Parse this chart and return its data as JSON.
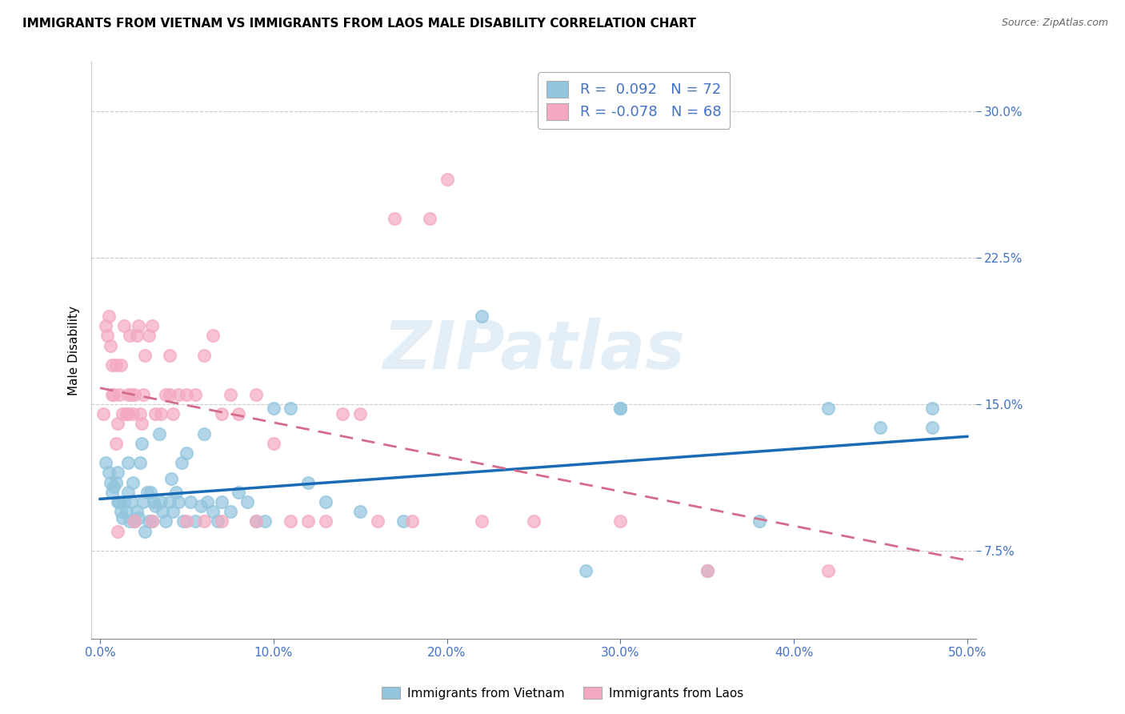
{
  "title": "IMMIGRANTS FROM VIETNAM VS IMMIGRANTS FROM LAOS MALE DISABILITY CORRELATION CHART",
  "source": "Source: ZipAtlas.com",
  "ylabel": "Male Disability",
  "xlim": [
    -0.005,
    0.505
  ],
  "ylim": [
    0.03,
    0.325
  ],
  "xticks": [
    0.0,
    0.1,
    0.2,
    0.3,
    0.4,
    0.5
  ],
  "xticklabels": [
    "0.0%",
    "10.0%",
    "20.0%",
    "30.0%",
    "40.0%",
    "50.0%"
  ],
  "yticks": [
    0.075,
    0.15,
    0.225,
    0.3
  ],
  "yticklabels": [
    "7.5%",
    "15.0%",
    "22.5%",
    "30.0%"
  ],
  "legend_vietnam": "Immigrants from Vietnam",
  "legend_laos": "Immigrants from Laos",
  "R_vietnam": "0.092",
  "N_vietnam": "72",
  "R_laos": "-0.078",
  "N_laos": "68",
  "color_vietnam": "#92c5de",
  "color_laos": "#f4a9c0",
  "color_trendline_vietnam": "#1a6bb5",
  "color_trendline_laos": "#d46b8a",
  "watermark": "ZIPatlas",
  "tick_color": "#4472c4",
  "vietnam_x": [
    0.003,
    0.005,
    0.006,
    0.007,
    0.008,
    0.009,
    0.01,
    0.01,
    0.011,
    0.012,
    0.013,
    0.014,
    0.015,
    0.016,
    0.016,
    0.017,
    0.018,
    0.019,
    0.02,
    0.021,
    0.022,
    0.023,
    0.024,
    0.025,
    0.026,
    0.027,
    0.028,
    0.029,
    0.03,
    0.031,
    0.032,
    0.034,
    0.035,
    0.036,
    0.038,
    0.04,
    0.041,
    0.042,
    0.044,
    0.045,
    0.047,
    0.048,
    0.05,
    0.052,
    0.055,
    0.058,
    0.06,
    0.062,
    0.065,
    0.068,
    0.07,
    0.075,
    0.08,
    0.085,
    0.09,
    0.095,
    0.1,
    0.11,
    0.12,
    0.13,
    0.15,
    0.175,
    0.22,
    0.28,
    0.35,
    0.38,
    0.42,
    0.45,
    0.3,
    0.3,
    0.48,
    0.48
  ],
  "vietnam_y": [
    0.12,
    0.115,
    0.11,
    0.105,
    0.108,
    0.11,
    0.1,
    0.115,
    0.1,
    0.095,
    0.092,
    0.1,
    0.095,
    0.105,
    0.12,
    0.09,
    0.1,
    0.11,
    0.09,
    0.095,
    0.092,
    0.12,
    0.13,
    0.1,
    0.085,
    0.105,
    0.09,
    0.105,
    0.09,
    0.1,
    0.098,
    0.135,
    0.1,
    0.095,
    0.09,
    0.1,
    0.112,
    0.095,
    0.105,
    0.1,
    0.12,
    0.09,
    0.125,
    0.1,
    0.09,
    0.098,
    0.135,
    0.1,
    0.095,
    0.09,
    0.1,
    0.095,
    0.105,
    0.1,
    0.09,
    0.09,
    0.148,
    0.148,
    0.11,
    0.1,
    0.095,
    0.09,
    0.195,
    0.065,
    0.065,
    0.09,
    0.148,
    0.138,
    0.148,
    0.148,
    0.148,
    0.138
  ],
  "laos_x": [
    0.002,
    0.003,
    0.004,
    0.005,
    0.006,
    0.007,
    0.007,
    0.008,
    0.009,
    0.009,
    0.01,
    0.011,
    0.012,
    0.013,
    0.014,
    0.015,
    0.016,
    0.016,
    0.017,
    0.018,
    0.019,
    0.02,
    0.021,
    0.022,
    0.023,
    0.024,
    0.025,
    0.026,
    0.028,
    0.03,
    0.032,
    0.035,
    0.038,
    0.04,
    0.042,
    0.045,
    0.05,
    0.055,
    0.06,
    0.065,
    0.07,
    0.075,
    0.08,
    0.09,
    0.1,
    0.12,
    0.14,
    0.16,
    0.18,
    0.22,
    0.25,
    0.3,
    0.35,
    0.42,
    0.2,
    0.19,
    0.17,
    0.15,
    0.13,
    0.11,
    0.09,
    0.07,
    0.05,
    0.03,
    0.01,
    0.02,
    0.04,
    0.06
  ],
  "laos_y": [
    0.145,
    0.19,
    0.185,
    0.195,
    0.18,
    0.17,
    0.155,
    0.155,
    0.17,
    0.13,
    0.14,
    0.155,
    0.17,
    0.145,
    0.19,
    0.145,
    0.145,
    0.155,
    0.185,
    0.155,
    0.145,
    0.155,
    0.185,
    0.19,
    0.145,
    0.14,
    0.155,
    0.175,
    0.185,
    0.19,
    0.145,
    0.145,
    0.155,
    0.175,
    0.145,
    0.155,
    0.155,
    0.155,
    0.175,
    0.185,
    0.145,
    0.155,
    0.145,
    0.155,
    0.13,
    0.09,
    0.145,
    0.09,
    0.09,
    0.09,
    0.09,
    0.09,
    0.065,
    0.065,
    0.265,
    0.245,
    0.245,
    0.145,
    0.09,
    0.09,
    0.09,
    0.09,
    0.09,
    0.09,
    0.085,
    0.09,
    0.155,
    0.09
  ]
}
